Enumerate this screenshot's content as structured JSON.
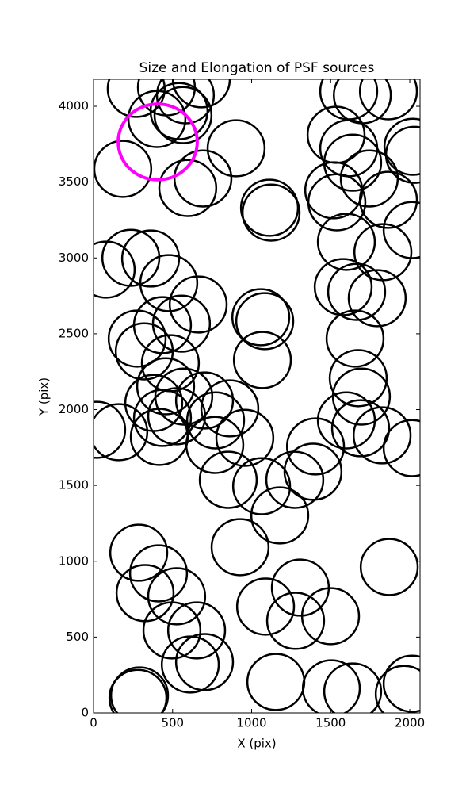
{
  "chart_data": {
    "type": "ellipse",
    "title": "Size and Elongation of PSF sources",
    "xlabel": "X (pix)",
    "ylabel": "Y (pix)",
    "xlim": [
      0,
      2065
    ],
    "ylim": [
      0,
      4178
    ],
    "xticks": [
      0,
      500,
      1000,
      1500,
      2000
    ],
    "yticks": [
      0,
      500,
      1000,
      1500,
      2000,
      2500,
      3000,
      3500,
      4000
    ],
    "series": [
      {
        "color": "#000000",
        "linewidth": 2.5,
        "width": 360,
        "height": 370,
        "x": [
          270,
          401,
          541,
          581,
          566,
          682,
          461,
          185,
          596,
          692,
          902,
          1113,
          1123,
          1614,
          1700,
          1865,
          2020,
          2030,
          1534,
          1614,
          1744,
          1639,
          1519,
          1539,
          1865,
          2015,
          1599,
          1830,
          1579,
          1664,
          1794,
          1654,
          1674,
          1694,
          1599,
          1689,
          1825,
          2015,
          1404,
          1388,
          1273,
          1063,
          1178,
          852,
          957,
          927,
          1870,
          1088,
          1308,
          1278,
          1499,
          1153,
          1504,
          1639,
          2015,
          1965,
          80,
          236,
          361,
          476,
          662,
          556,
          436,
          276,
          321,
          486,
          456,
          571,
          381,
          160,
          20,
          416,
          436,
          526,
          702,
          862,
          772,
          767,
          1083,
          1058,
          1068,
          286,
          411,
          326,
          526,
          496,
          652,
          702,
          612,
          291,
          281
        ],
        "y": [
          4115,
          3916,
          3968,
          4073,
          3942,
          4178,
          4125,
          3587,
          3461,
          3524,
          3723,
          3331,
          3299,
          4099,
          4073,
          4099,
          3733,
          3680,
          3812,
          3723,
          3524,
          3628,
          3446,
          3367,
          3383,
          3184,
          3106,
          3038,
          2808,
          2776,
          2735,
          2468,
          2207,
          2086,
          1929,
          1877,
          1830,
          1746,
          1757,
          1590,
          1537,
          1495,
          1302,
          1537,
          1814,
          1093,
          962,
          701,
          826,
          607,
          638,
          204,
          162,
          141,
          193,
          125,
          2923,
          3001,
          2996,
          2834,
          2693,
          2567,
          2557,
          2468,
          2384,
          2306,
          2154,
          2086,
          2044,
          1851,
          1867,
          1820,
          1945,
          1956,
          2060,
          2008,
          1929,
          1767,
          2583,
          2609,
          2327,
          1056,
          920,
          790,
          769,
          544,
          544,
          335,
          319,
          115,
          99
        ]
      },
      {
        "color": "#ff00ff",
        "linewidth": 4,
        "width": 500,
        "height": 500,
        "x": [
          406
        ],
        "y": [
          3765
        ]
      }
    ]
  }
}
